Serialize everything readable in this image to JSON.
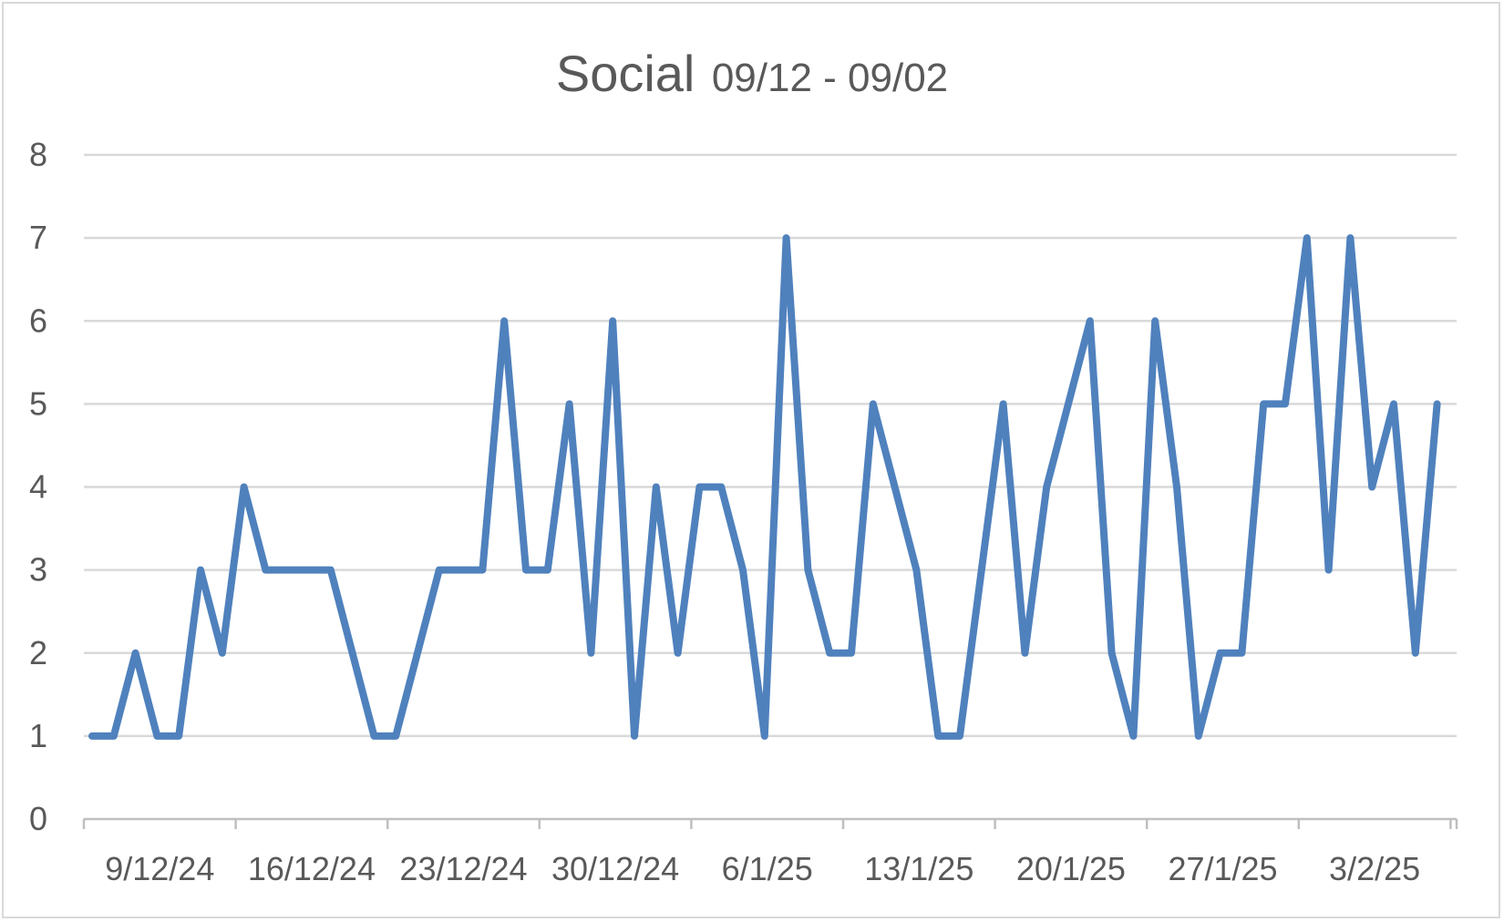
{
  "chart_data": {
    "type": "line",
    "title": "Social",
    "subtitle": "09/12 - 09/02",
    "xlabel": "",
    "ylabel": "",
    "ylim": [
      0,
      8
    ],
    "yticks": [
      "0",
      "1",
      "2",
      "3",
      "4",
      "5",
      "6",
      "7",
      "8"
    ],
    "grid": true,
    "legend": "none",
    "x_start": "2024-12-09",
    "xtick_labels": [
      "9/12/24",
      "16/12/24",
      "23/12/24",
      "30/12/24",
      "6/1/25",
      "13/1/25",
      "20/1/25",
      "27/1/25",
      "3/2/25"
    ],
    "x": [
      "2024-12-09",
      "2024-12-10",
      "2024-12-11",
      "2024-12-12",
      "2024-12-13",
      "2024-12-14",
      "2024-12-15",
      "2024-12-16",
      "2024-12-17",
      "2024-12-18",
      "2024-12-19",
      "2024-12-20",
      "2024-12-21",
      "2024-12-22",
      "2024-12-23",
      "2024-12-24",
      "2024-12-25",
      "2024-12-26",
      "2024-12-27",
      "2024-12-28",
      "2024-12-29",
      "2024-12-30",
      "2024-12-31",
      "2025-01-01",
      "2025-01-02",
      "2025-01-03",
      "2025-01-04",
      "2025-01-05",
      "2025-01-06",
      "2025-01-07",
      "2025-01-08",
      "2025-01-09",
      "2025-01-10",
      "2025-01-11",
      "2025-01-12",
      "2025-01-13",
      "2025-01-14",
      "2025-01-15",
      "2025-01-16",
      "2025-01-17",
      "2025-01-18",
      "2025-01-19",
      "2025-01-20",
      "2025-01-21",
      "2025-01-22",
      "2025-01-23",
      "2025-01-24",
      "2025-01-25",
      "2025-01-26",
      "2025-01-27",
      "2025-01-28",
      "2025-01-29",
      "2025-01-30",
      "2025-01-31",
      "2025-02-01",
      "2025-02-02",
      "2025-02-03",
      "2025-02-04",
      "2025-02-05",
      "2025-02-06",
      "2025-02-07",
      "2025-02-08",
      "2025-02-09"
    ],
    "series": [
      {
        "color": "#4f81bd",
        "values": [
          1,
          1,
          2,
          1,
          1,
          3,
          2,
          4,
          3,
          3,
          3,
          3,
          2,
          1,
          1,
          2,
          3,
          3,
          3,
          6,
          3,
          3,
          5,
          2,
          6,
          1,
          4,
          2,
          4,
          4,
          3,
          1,
          7,
          3,
          2,
          2,
          5,
          4,
          3,
          1,
          1,
          3,
          5,
          2,
          4,
          5,
          6,
          2,
          1,
          6,
          4,
          1,
          2,
          2,
          5,
          5,
          7,
          3,
          7,
          4,
          5,
          2,
          5
        ]
      }
    ]
  }
}
